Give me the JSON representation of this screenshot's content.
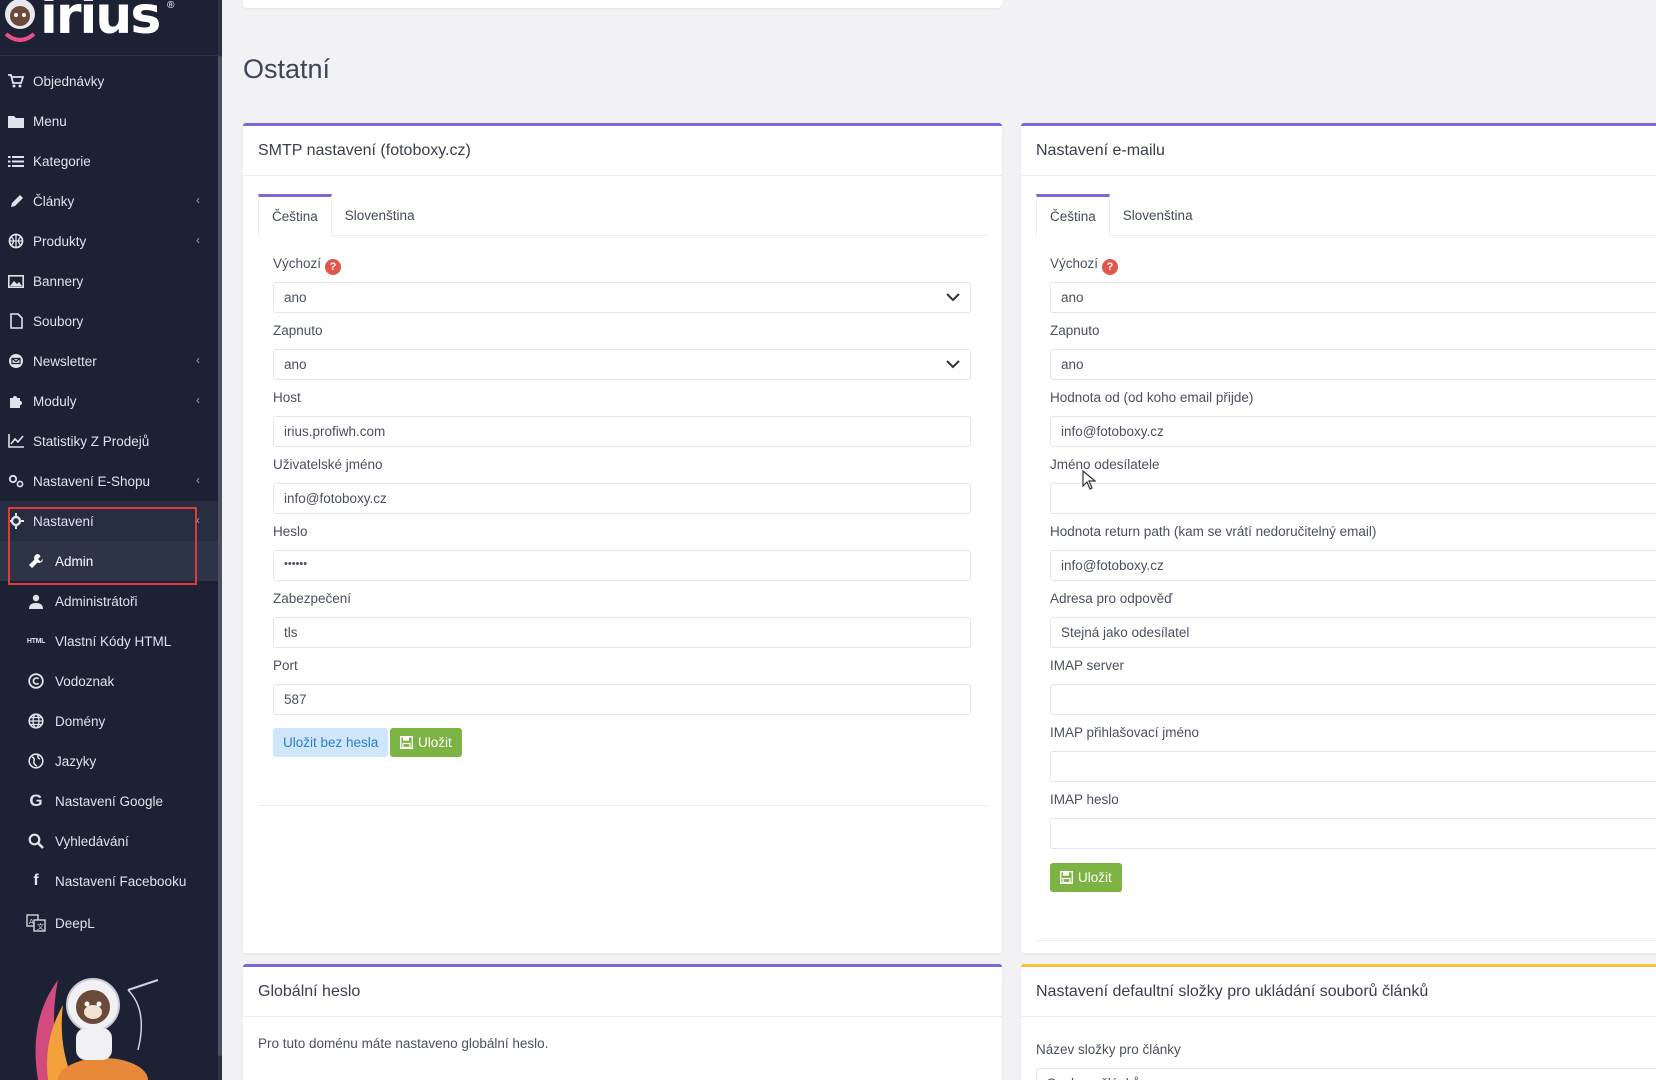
{
  "brand": {
    "name": "irius",
    "reg": "®"
  },
  "sidebar": {
    "items": [
      {
        "label": "Objednávky",
        "icon": "cart-icon",
        "chevron": false
      },
      {
        "label": "Menu",
        "icon": "folder-icon",
        "chevron": false
      },
      {
        "label": "Kategorie",
        "icon": "list-icon",
        "chevron": false
      },
      {
        "label": "Články",
        "icon": "pencil-icon",
        "chevron": true
      },
      {
        "label": "Produkty",
        "icon": "basketball-icon",
        "chevron": true
      },
      {
        "label": "Bannery",
        "icon": "image-icon",
        "chevron": false
      },
      {
        "label": "Soubory",
        "icon": "file-icon",
        "chevron": false
      },
      {
        "label": "Newsletter",
        "icon": "mail-icon",
        "chevron": true
      },
      {
        "label": "Moduly",
        "icon": "puzzle-icon",
        "chevron": true
      },
      {
        "label": "Statistiky Z Prodejů",
        "icon": "chart-icon",
        "chevron": false
      },
      {
        "label": "Nastavení E-Shopu",
        "icon": "cogs-icon",
        "chevron": true
      },
      {
        "label": "Nastavení",
        "icon": "cog-icon",
        "chevron": true
      }
    ],
    "subitems": [
      {
        "label": "Admin",
        "icon": "wrench-icon"
      },
      {
        "label": "Administrátoři",
        "icon": "user-icon"
      },
      {
        "label": "Vlastní Kódy HTML",
        "icon": "html-icon"
      },
      {
        "label": "Vodoznak",
        "icon": "copyright-icon"
      },
      {
        "label": "Domény",
        "icon": "globe-icon"
      },
      {
        "label": "Jazyky",
        "icon": "globe-alt-icon"
      },
      {
        "label": "Nastavení Google",
        "icon": "google-icon"
      },
      {
        "label": "Vyhledávání",
        "icon": "search-icon"
      },
      {
        "label": "Nastavení Facebooku",
        "icon": "facebook-icon"
      },
      {
        "label": "DeepL",
        "icon": "translate-icon"
      }
    ]
  },
  "page": {
    "title": "Ostatní"
  },
  "smtp": {
    "title": "SMTP nastavení (fotoboxy.cz)",
    "tabs": [
      "Čeština",
      "Slovenština"
    ],
    "fields": {
      "default_label": "Výchozí",
      "default_value": "ano",
      "enabled_label": "Zapnuto",
      "enabled_value": "ano",
      "host_label": "Host",
      "host_value": "irius.profiwh.com",
      "user_label": "Uživatelské jméno",
      "user_value": "info@fotoboxy.cz",
      "password_label": "Heslo",
      "password_value": "••••••",
      "security_label": "Zabezpečení",
      "security_value": "tls",
      "port_label": "Port",
      "port_value": "587"
    },
    "save_without_password": "Uložit bez hesla",
    "save": "Uložit"
  },
  "email": {
    "title": "Nastavení e-mailu",
    "tabs": [
      "Čeština",
      "Slovenština"
    ],
    "fields": {
      "default_label": "Výchozí",
      "default_value": "ano",
      "enabled_label": "Zapnuto",
      "enabled_value": "ano",
      "from_label": "Hodnota od (od koho email přijde)",
      "from_value": "info@fotoboxy.cz",
      "sender_label": "Jméno odesílatele",
      "sender_value": "",
      "return_label": "Hodnota return path (kam se vrátí nedoručitelný email)",
      "return_value": "info@fotoboxy.cz",
      "reply_label": "Adresa pro odpověď",
      "reply_value": "Stejná jako odesílatel",
      "imap_server_label": "IMAP server",
      "imap_server_value": "",
      "imap_user_label": "IMAP přihlašovací jméno",
      "imap_user_value": "",
      "imap_password_label": "IMAP heslo",
      "imap_password_value": ""
    },
    "save": "Uložit"
  },
  "global_password": {
    "title": "Globální heslo",
    "text": "Pro tuto doménu máte nastaveno globální heslo."
  },
  "folder_settings": {
    "title": "Nastavení defaultní složky pro ukládání souborů článků",
    "label": "Název složky pro články",
    "value": "Soubory článků"
  },
  "colors": {
    "accent": "#7b68d8",
    "gold": "#f3c13a",
    "sidebar": "#1c2233",
    "save": "#7cb342"
  }
}
